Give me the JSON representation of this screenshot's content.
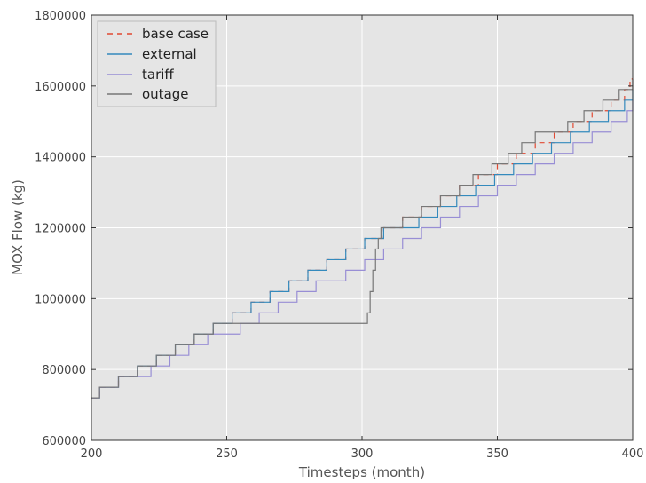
{
  "chart_data": {
    "type": "line",
    "title": "",
    "xlabel": "Timesteps (month)",
    "ylabel": "MOX Flow (kg)",
    "xlim": [
      200,
      400
    ],
    "ylim": [
      600000,
      1800000
    ],
    "xticks": [
      200,
      250,
      300,
      350,
      400
    ],
    "yticks": [
      600000,
      800000,
      1000000,
      1200000,
      1400000,
      1600000,
      1800000
    ],
    "grid": true,
    "background": "#e5e5e5",
    "legend_position": "top-left",
    "series": [
      {
        "name": "base case",
        "color": "#e24a33",
        "dash": true,
        "points": [
          [
            200,
            720000
          ],
          [
            203,
            750000
          ],
          [
            210,
            780000
          ],
          [
            217,
            810000
          ],
          [
            224,
            840000
          ],
          [
            231,
            870000
          ],
          [
            238,
            900000
          ],
          [
            245,
            930000
          ],
          [
            252,
            960000
          ],
          [
            259,
            990000
          ],
          [
            266,
            1020000
          ],
          [
            273,
            1050000
          ],
          [
            280,
            1080000
          ],
          [
            287,
            1110000
          ],
          [
            294,
            1140000
          ],
          [
            301,
            1170000
          ],
          [
            308,
            1200000
          ],
          [
            315,
            1230000
          ],
          [
            322,
            1260000
          ],
          [
            329,
            1290000
          ],
          [
            336,
            1320000
          ],
          [
            343,
            1350000
          ],
          [
            350,
            1380000
          ],
          [
            357,
            1410000
          ],
          [
            364,
            1440000
          ],
          [
            371,
            1470000
          ],
          [
            378,
            1500000
          ],
          [
            385,
            1530000
          ],
          [
            392,
            1560000
          ],
          [
            397,
            1590000
          ],
          [
            399,
            1620000
          ],
          [
            400,
            1620000
          ]
        ]
      },
      {
        "name": "external",
        "color": "#348abd",
        "dash": false,
        "points": [
          [
            200,
            720000
          ],
          [
            203,
            750000
          ],
          [
            210,
            780000
          ],
          [
            217,
            810000
          ],
          [
            224,
            840000
          ],
          [
            231,
            870000
          ],
          [
            238,
            900000
          ],
          [
            245,
            930000
          ],
          [
            252,
            960000
          ],
          [
            259,
            990000
          ],
          [
            266,
            1020000
          ],
          [
            273,
            1050000
          ],
          [
            280,
            1080000
          ],
          [
            287,
            1110000
          ],
          [
            294,
            1140000
          ],
          [
            301,
            1170000
          ],
          [
            308,
            1200000
          ],
          [
            321,
            1230000
          ],
          [
            328,
            1260000
          ],
          [
            335,
            1290000
          ],
          [
            342,
            1320000
          ],
          [
            349,
            1350000
          ],
          [
            356,
            1380000
          ],
          [
            363,
            1410000
          ],
          [
            370,
            1440000
          ],
          [
            377,
            1470000
          ],
          [
            384,
            1500000
          ],
          [
            391,
            1530000
          ],
          [
            397,
            1560000
          ],
          [
            400,
            1590000
          ]
        ]
      },
      {
        "name": "tariff",
        "color": "#988ed5",
        "dash": false,
        "points": [
          [
            200,
            720000
          ],
          [
            203,
            750000
          ],
          [
            210,
            780000
          ],
          [
            222,
            810000
          ],
          [
            229,
            840000
          ],
          [
            236,
            870000
          ],
          [
            243,
            900000
          ],
          [
            255,
            930000
          ],
          [
            262,
            960000
          ],
          [
            269,
            990000
          ],
          [
            276,
            1020000
          ],
          [
            283,
            1050000
          ],
          [
            294,
            1080000
          ],
          [
            301,
            1110000
          ],
          [
            308,
            1140000
          ],
          [
            315,
            1170000
          ],
          [
            322,
            1200000
          ],
          [
            329,
            1230000
          ],
          [
            336,
            1260000
          ],
          [
            343,
            1290000
          ],
          [
            350,
            1320000
          ],
          [
            357,
            1350000
          ],
          [
            364,
            1380000
          ],
          [
            371,
            1410000
          ],
          [
            378,
            1440000
          ],
          [
            385,
            1470000
          ],
          [
            392,
            1500000
          ],
          [
            398,
            1530000
          ],
          [
            400,
            1560000
          ]
        ]
      },
      {
        "name": "outage",
        "color": "#777777",
        "dash": false,
        "points": [
          [
            200,
            720000
          ],
          [
            203,
            750000
          ],
          [
            210,
            780000
          ],
          [
            217,
            810000
          ],
          [
            224,
            840000
          ],
          [
            231,
            870000
          ],
          [
            238,
            900000
          ],
          [
            245,
            930000
          ],
          [
            301,
            930000
          ],
          [
            302,
            960000
          ],
          [
            303,
            1020000
          ],
          [
            304,
            1080000
          ],
          [
            305,
            1140000
          ],
          [
            306,
            1170000
          ],
          [
            307,
            1200000
          ],
          [
            315,
            1230000
          ],
          [
            322,
            1260000
          ],
          [
            329,
            1290000
          ],
          [
            336,
            1320000
          ],
          [
            341,
            1350000
          ],
          [
            348,
            1380000
          ],
          [
            354,
            1410000
          ],
          [
            359,
            1440000
          ],
          [
            364,
            1470000
          ],
          [
            376,
            1500000
          ],
          [
            382,
            1530000
          ],
          [
            389,
            1560000
          ],
          [
            395,
            1590000
          ],
          [
            400,
            1620000
          ]
        ]
      }
    ]
  }
}
